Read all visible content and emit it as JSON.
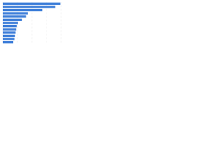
{
  "chart_data": {
    "type": "bar",
    "orientation": "horizontal",
    "categories": [
      null,
      null,
      null,
      null,
      null,
      null,
      null,
      null,
      null,
      null,
      null,
      null,
      null
    ],
    "values": [
      99,
      90,
      68,
      43,
      40,
      33,
      26,
      24,
      23,
      22,
      21,
      20,
      18
    ],
    "color": "#3f7fd9",
    "xlim": [
      0,
      100
    ],
    "xticks": [
      0,
      25,
      50,
      75,
      100
    ],
    "grid": true
  }
}
